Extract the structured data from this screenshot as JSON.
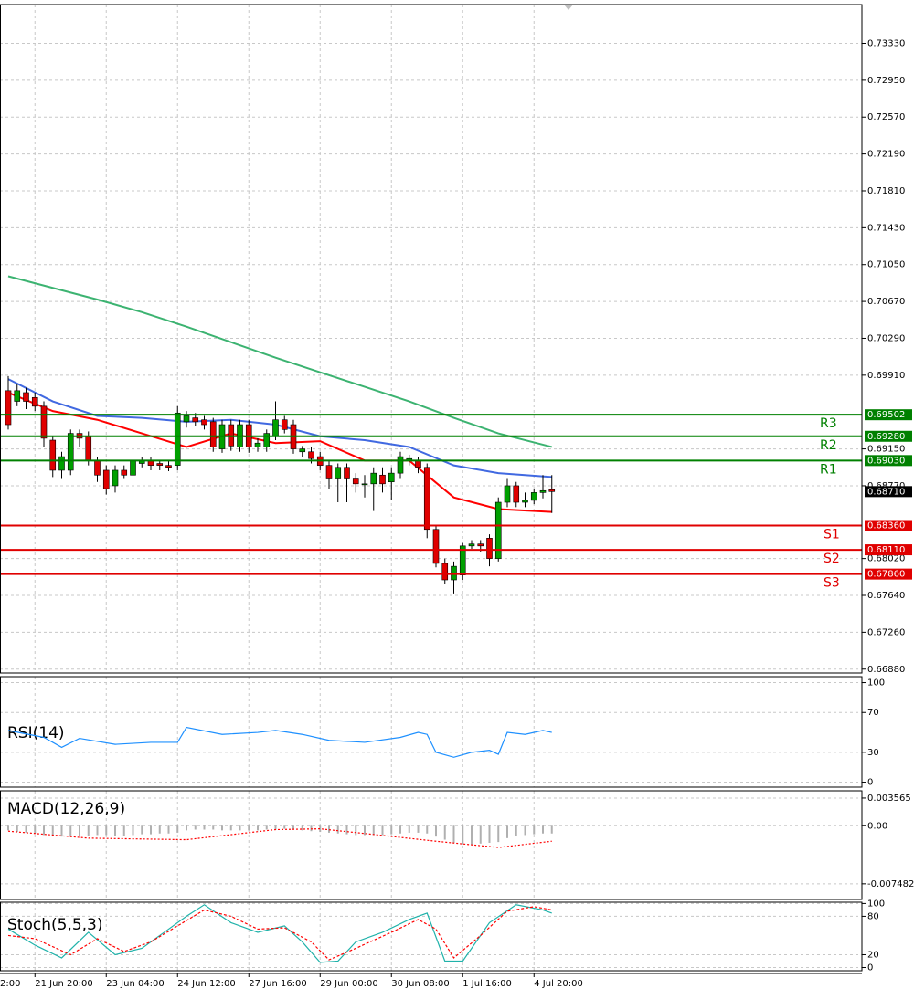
{
  "chart_data": [
    {
      "type": "candlestick",
      "open": [
        0.6975,
        0.6964,
        0.6973,
        0.6968,
        0.6959,
        0.6924,
        0.6893,
        0.6893,
        0.6931,
        0.6928,
        0.6903,
        0.6893,
        0.6877,
        0.6893,
        0.6888,
        0.69,
        0.6903,
        0.69,
        0.6898,
        0.6898,
        0.6943,
        0.6947,
        0.6945,
        0.6943,
        0.6915,
        0.694,
        0.6917,
        0.694,
        0.6917,
        0.6917,
        0.6928,
        0.6945,
        0.694,
        0.6912,
        0.6912,
        0.6907,
        0.6898,
        0.6884,
        0.6896,
        0.6884,
        0.6879,
        0.6879,
        0.6888,
        0.6881,
        0.689,
        0.6903,
        0.6903,
        0.6896,
        0.6832,
        0.6797,
        0.678,
        0.6785,
        0.6815,
        0.6817,
        0.6823,
        0.6802,
        0.686,
        0.6877,
        0.686,
        0.6862,
        0.687,
        0.6873
      ],
      "high": [
        0.699,
        0.6982,
        0.6978,
        0.6973,
        0.6964,
        0.6928,
        0.6912,
        0.6935,
        0.6935,
        0.6933,
        0.6907,
        0.6898,
        0.6898,
        0.6898,
        0.6907,
        0.6907,
        0.6907,
        0.6903,
        0.6903,
        0.6959,
        0.6954,
        0.6952,
        0.6949,
        0.6947,
        0.6945,
        0.6945,
        0.6945,
        0.6945,
        0.6926,
        0.6935,
        0.6964,
        0.6949,
        0.6945,
        0.6918,
        0.6917,
        0.6912,
        0.6903,
        0.69,
        0.69,
        0.689,
        0.6888,
        0.6896,
        0.6896,
        0.6896,
        0.6912,
        0.6909,
        0.6907,
        0.69,
        0.6837,
        0.6802,
        0.6799,
        0.6818,
        0.6821,
        0.6821,
        0.6827,
        0.6865,
        0.6884,
        0.6881,
        0.687,
        0.6874,
        0.6888,
        0.6888
      ],
      "low": [
        0.6935,
        0.6959,
        0.6956,
        0.6954,
        0.6917,
        0.6886,
        0.6884,
        0.6888,
        0.6917,
        0.6898,
        0.6881,
        0.6868,
        0.687,
        0.6884,
        0.6874,
        0.6896,
        0.6893,
        0.6893,
        0.6892,
        0.6893,
        0.6937,
        0.6939,
        0.6935,
        0.6912,
        0.6911,
        0.6913,
        0.6912,
        0.6911,
        0.6912,
        0.6912,
        0.6924,
        0.6931,
        0.691,
        0.6907,
        0.69,
        0.6893,
        0.6874,
        0.686,
        0.686,
        0.687,
        0.6865,
        0.6851,
        0.687,
        0.6862,
        0.6884,
        0.6898,
        0.689,
        0.6823,
        0.6793,
        0.6776,
        0.6766,
        0.678,
        0.6812,
        0.6809,
        0.6794,
        0.6799,
        0.6855,
        0.6855,
        0.6855,
        0.6858,
        0.6864,
        0.6849
      ],
      "close": [
        0.694,
        0.6975,
        0.6964,
        0.6959,
        0.6926,
        0.6893,
        0.6907,
        0.6931,
        0.6926,
        0.6903,
        0.6888,
        0.6874,
        0.6893,
        0.6888,
        0.6903,
        0.6903,
        0.6898,
        0.6898,
        0.6896,
        0.6952,
        0.6949,
        0.6943,
        0.694,
        0.6917,
        0.694,
        0.6918,
        0.694,
        0.6917,
        0.6921,
        0.6931,
        0.6945,
        0.6935,
        0.6915,
        0.6915,
        0.6905,
        0.6898,
        0.6884,
        0.6896,
        0.6884,
        0.6879,
        0.6879,
        0.689,
        0.6879,
        0.689,
        0.6907,
        0.6905,
        0.6896,
        0.6832,
        0.6797,
        0.678,
        0.6794,
        0.6815,
        0.6817,
        0.6815,
        0.6802,
        0.686,
        0.6877,
        0.686,
        0.6862,
        0.687,
        0.6872,
        0.6871
      ],
      "last_label": "0.68710",
      "up_color": "#00a000",
      "down_color": "#e00000",
      "ylim": [
        0.6684,
        0.7373
      ],
      "yticks": [
        {
          "value": 0.7333,
          "label": "0.73330"
        },
        {
          "value": 0.7295,
          "label": "0.72950"
        },
        {
          "value": 0.7257,
          "label": "0.72570"
        },
        {
          "value": 0.7219,
          "label": "0.72190"
        },
        {
          "value": 0.7181,
          "label": "0.71810"
        },
        {
          "value": 0.7143,
          "label": "0.71430"
        },
        {
          "value": 0.7105,
          "label": "0.71050"
        },
        {
          "value": 0.7067,
          "label": "0.70670"
        },
        {
          "value": 0.7029,
          "label": "0.70290"
        },
        {
          "value": 0.6991,
          "label": "0.69910"
        },
        {
          "value": 0.6915,
          "label": "0.69150"
        },
        {
          "value": 0.6877,
          "label": "0.68770"
        },
        {
          "value": 0.6802,
          "label": "0.68020"
        },
        {
          "value": 0.6764,
          "label": "0.67640"
        },
        {
          "value": 0.6726,
          "label": "0.67260"
        },
        {
          "value": 0.6688,
          "label": "0.66880"
        }
      ],
      "grid": true,
      "x_labels": [
        "2:00",
        "21 Jun 20:00",
        "23 Jun 04:00",
        "24 Jun 12:00",
        "27 Jun 16:00",
        "29 Jun 00:00",
        "30 Jun 08:00",
        "1 Jul 16:00",
        "4 Jul 20:00"
      ],
      "x_label_index": [
        -5,
        3,
        11,
        19,
        27,
        35,
        43,
        51,
        59
      ],
      "moving_averages": [
        {
          "color": "#3cb371",
          "x": [
            0,
            5,
            10,
            15,
            20,
            25,
            30,
            35,
            40,
            45,
            50,
            55,
            61
          ],
          "values": [
            0.7093,
            0.7081,
            0.7069,
            0.7056,
            0.7041,
            0.7025,
            0.7009,
            0.6994,
            0.6979,
            0.6964,
            0.6947,
            0.6931,
            0.6917
          ]
        },
        {
          "color": "#4169e1",
          "x": [
            0,
            5,
            10,
            15,
            20,
            25,
            30,
            35,
            40,
            45,
            50,
            55,
            61
          ],
          "values": [
            0.6987,
            0.6964,
            0.6949,
            0.6947,
            0.6943,
            0.6945,
            0.694,
            0.6928,
            0.6924,
            0.6917,
            0.6898,
            0.689,
            0.6886
          ]
        },
        {
          "color": "#ff0000",
          "x": [
            0,
            5,
            10,
            15,
            20,
            25,
            30,
            35,
            40,
            45,
            50,
            55,
            61
          ],
          "values": [
            0.6973,
            0.6954,
            0.6945,
            0.6931,
            0.6917,
            0.6931,
            0.6921,
            0.6923,
            0.6903,
            0.6903,
            0.6865,
            0.6853,
            0.685
          ]
        }
      ],
      "levels": {
        "names": [
          "R3",
          "R2",
          "R1",
          "S1",
          "S2",
          "S3"
        ],
        "values": [
          0.69502,
          0.6928,
          0.6903,
          0.6836,
          0.6811,
          0.6786
        ],
        "value_labels": [
          "0.69502",
          "0.69280",
          "0.69030",
          "0.68360",
          "0.68110",
          "0.67860"
        ],
        "colors": [
          "#008000",
          "#008000",
          "#008000",
          "#e00000",
          "#e00000",
          "#e00000"
        ]
      }
    },
    {
      "type": "line",
      "title": "RSI(14)",
      "ylim": [
        -5,
        106
      ],
      "yticks": [
        100,
        70,
        30,
        0
      ],
      "series": [
        {
          "color": "#1e90ff",
          "x": [
            0,
            4,
            6,
            8,
            12,
            16,
            19,
            20,
            24,
            28,
            30,
            33,
            36,
            40,
            44,
            46,
            47,
            48,
            50,
            52,
            54,
            55,
            56,
            58,
            60,
            61
          ],
          "values": [
            52,
            45,
            35,
            44,
            38,
            40,
            40,
            55,
            48,
            50,
            52,
            48,
            42,
            40,
            45,
            50,
            48,
            30,
            25,
            30,
            32,
            28,
            50,
            48,
            52,
            50
          ]
        }
      ]
    },
    {
      "type": "macd",
      "title": "MACD(12,26,9)",
      "ylim": [
        -0.0095,
        0.0045
      ],
      "yticks": [
        0.003565,
        {
          "value": 0,
          "label": "0.00"
        },
        -0.007482
      ],
      "histogram": {
        "color": "#b0b0b0",
        "values": [
          -0.0006,
          -0.0008,
          -0.0009,
          -0.001,
          -0.0012,
          -0.0013,
          -0.0014,
          -0.0014,
          -0.0013,
          -0.0013,
          -0.0012,
          -0.0012,
          -0.0013,
          -0.0013,
          -0.0012,
          -0.0011,
          -0.0011,
          -0.001,
          -0.001,
          -0.0009,
          -0.0006,
          -0.0005,
          -0.0005,
          -0.0005,
          -0.0006,
          -0.0006,
          -0.0006,
          -0.0006,
          -0.0006,
          -0.0005,
          -0.0005,
          -0.0004,
          -0.0005,
          -0.0006,
          -0.0007,
          -0.0008,
          -0.0009,
          -0.001,
          -0.0011,
          -0.0012,
          -0.0012,
          -0.0012,
          -0.0012,
          -0.0011,
          -0.001,
          -0.0009,
          -0.0009,
          -0.001,
          -0.0014,
          -0.0018,
          -0.0022,
          -0.0024,
          -0.0024,
          -0.0023,
          -0.0022,
          -0.0021,
          -0.0016,
          -0.0013,
          -0.0012,
          -0.0011,
          -0.001,
          -0.001
        ]
      },
      "series": [
        {
          "color": "#ff0000",
          "dash": "2 2",
          "x": [
            0,
            9,
            20,
            30,
            35,
            40,
            48,
            55,
            61
          ],
          "values": [
            -0.0007,
            -0.0016,
            -0.0018,
            -0.0005,
            -0.0004,
            -0.001,
            -0.002,
            -0.0028,
            -0.002
          ]
        }
      ]
    },
    {
      "type": "line",
      "title": "Stoch(5,5,3)",
      "ylim": [
        -5,
        102
      ],
      "yticks": [
        100,
        80,
        20,
        0
      ],
      "series": [
        {
          "color": "#20b2aa",
          "x": [
            0,
            3,
            6,
            9,
            12,
            15,
            18,
            20,
            22,
            25,
            28,
            31,
            33,
            35,
            37,
            39,
            42,
            45,
            47,
            49,
            51,
            54,
            57,
            60,
            61
          ],
          "values": [
            60,
            35,
            15,
            55,
            20,
            30,
            60,
            80,
            98,
            70,
            55,
            65,
            40,
            8,
            10,
            40,
            55,
            75,
            85,
            10,
            10,
            70,
            98,
            90,
            85
          ]
        },
        {
          "color": "#ff0000",
          "dash": "3 2",
          "x": [
            0,
            3,
            7,
            10,
            13,
            16,
            19,
            22,
            25,
            28,
            31,
            34,
            36,
            39,
            43,
            46,
            48,
            50,
            53,
            56,
            59,
            61
          ],
          "values": [
            50,
            45,
            20,
            45,
            25,
            40,
            65,
            90,
            80,
            60,
            62,
            40,
            12,
            30,
            55,
            75,
            60,
            15,
            50,
            88,
            95,
            90
          ]
        }
      ]
    }
  ]
}
